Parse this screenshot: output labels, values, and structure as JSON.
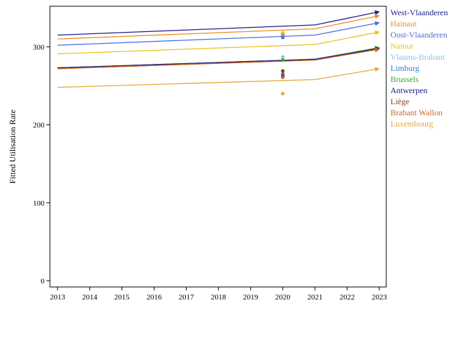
{
  "chart_data": {
    "type": "line",
    "title": "",
    "xlabel": "",
    "ylabel": "Fitted Utilisation Rate",
    "x": [
      2013,
      2014,
      2015,
      2016,
      2017,
      2018,
      2019,
      2020,
      2021,
      2022,
      2023
    ],
    "x_ticks": [
      "2013",
      "2014",
      "2015",
      "2016",
      "2017",
      "2018",
      "2019",
      "2020",
      "2021",
      "2022",
      "2023"
    ],
    "y_ticks": [
      "0",
      "100",
      "200",
      "300"
    ],
    "xlim": [
      2013,
      2023
    ],
    "ylim": [
      -8,
      352
    ],
    "grid": false,
    "legend_position": "right",
    "series": [
      {
        "name": "West-Vlaanderen",
        "color": "#1c1c8a",
        "line": [
          [
            2013,
            315
          ],
          [
            2021,
            328
          ],
          [
            2023,
            345
          ]
        ],
        "observed_2020": 316
      },
      {
        "name": "Hainaut",
        "color": "#f08c1e",
        "line": [
          [
            2013,
            310
          ],
          [
            2021,
            323
          ],
          [
            2023,
            340
          ]
        ],
        "observed_2020": 314
      },
      {
        "name": "Oost-Vlaanderen",
        "color": "#4a6fe0",
        "line": [
          [
            2013,
            302
          ],
          [
            2021,
            315
          ],
          [
            2023,
            331
          ]
        ],
        "observed_2020": 312
      },
      {
        "name": "Namur",
        "color": "#e8c21a",
        "line": [
          [
            2013,
            291
          ],
          [
            2021,
            303
          ],
          [
            2023,
            319
          ]
        ],
        "observed_2020": 318
      },
      {
        "name": "Vlaams-Brabant",
        "color": "#7ec8e8",
        "line": [
          [
            2013,
            273
          ],
          [
            2021,
            284
          ],
          [
            2023,
            299
          ]
        ],
        "observed_2020": 287
      },
      {
        "name": "Limburg",
        "color": "#2a7fd4",
        "line": [
          [
            2013,
            273
          ],
          [
            2021,
            284
          ],
          [
            2023,
            299
          ]
        ],
        "observed_2020": 265
      },
      {
        "name": "Brussels",
        "color": "#2eaa2e",
        "line": [
          [
            2013,
            273
          ],
          [
            2021,
            284
          ],
          [
            2023,
            299
          ]
        ],
        "observed_2020": 283
      },
      {
        "name": "Antwerpen",
        "color": "#16168c",
        "line": [
          [
            2013,
            273
          ],
          [
            2021,
            284
          ],
          [
            2023,
            298
          ]
        ],
        "observed_2020": 262
      },
      {
        "name": "Liège",
        "color": "#8c3c14",
        "line": [
          [
            2013,
            272
          ],
          [
            2021,
            283
          ],
          [
            2023,
            297
          ]
        ],
        "observed_2020": 269
      },
      {
        "name": "Brabant Wallon",
        "color": "#c8641e",
        "line": [
          [
            2013,
            272
          ],
          [
            2021,
            283
          ],
          [
            2023,
            297
          ]
        ],
        "observed_2020": 261
      },
      {
        "name": "Luxembourg",
        "color": "#e8a83a",
        "line": [
          [
            2013,
            248
          ],
          [
            2021,
            258
          ],
          [
            2023,
            272
          ]
        ],
        "observed_2020": 240
      }
    ]
  }
}
